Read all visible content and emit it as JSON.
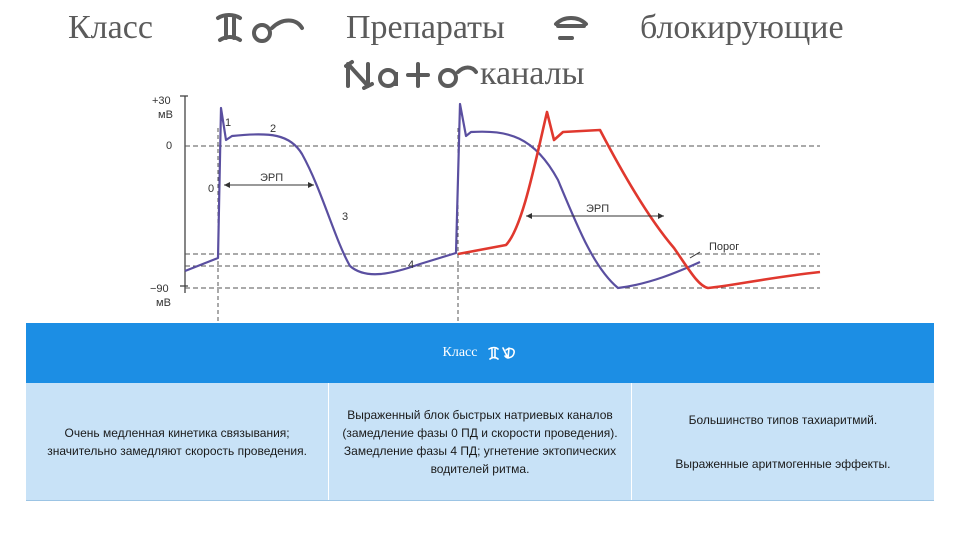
{
  "title": {
    "word1": "Класс",
    "word2": "Препараты",
    "word3": "блокирующие",
    "word4": "каналы"
  },
  "diagram": {
    "y_top_label": "+30",
    "y_top_unit": "мВ",
    "y_zero_label": "0",
    "y_bottom_label": "−90",
    "y_bottom_unit": "мВ",
    "phase_1": "1",
    "phase_2": "2",
    "phase_0": "0",
    "phase_3": "3",
    "phase_4": "4",
    "erp_label_left": "ЭРП",
    "erp_label_right": "ЭРП",
    "threshold_label": "Порог",
    "colors": {
      "baseline_curve": "#5a4fa0",
      "drug_curve": "#e0382e",
      "axis": "#444444"
    }
  },
  "table": {
    "header": "Класс",
    "colors": {
      "header_bg": "#1c8ee4",
      "body_bg": "#c8e2f7"
    },
    "cells": [
      [
        "Очень медленная кинетика связывания; значительно замедляют скорость проведения."
      ],
      [
        "Выраженный блок быстрых натриевых каналов (замедление фазы 0 ПД и скорости проведения). Замедление фазы 4 ПД; угнетение эктопических водителей ритма."
      ],
      [
        "Большинство типов тахиаритмий.",
        "Выраженные аритмогенные эффекты."
      ]
    ]
  }
}
